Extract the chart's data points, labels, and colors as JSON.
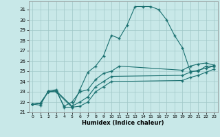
{
  "bg_color": "#c8e8e8",
  "grid_color": "#a0c8c8",
  "line_color": "#1a7070",
  "xlabel": "Humidex (Indice chaleur)",
  "xlim": [
    -0.5,
    23.5
  ],
  "ylim": [
    21,
    31.8
  ],
  "yticks": [
    21,
    22,
    23,
    24,
    25,
    26,
    27,
    28,
    29,
    30,
    31
  ],
  "xticks": [
    0,
    1,
    2,
    3,
    4,
    5,
    6,
    7,
    8,
    9,
    10,
    11,
    12,
    13,
    14,
    15,
    16,
    17,
    18,
    19,
    20,
    21,
    22,
    23
  ],
  "line1_x": [
    0,
    1,
    2,
    3,
    4,
    5,
    6,
    7,
    8,
    9,
    10,
    11,
    12,
    13,
    14,
    15,
    16,
    17,
    18,
    19,
    20,
    21,
    22,
    23
  ],
  "line1_y": [
    21.8,
    21.7,
    23.1,
    23.2,
    21.5,
    21.5,
    23.2,
    24.9,
    25.5,
    26.5,
    28.5,
    28.2,
    29.5,
    31.3,
    31.3,
    31.3,
    31.0,
    30.0,
    28.5,
    27.3,
    25.0,
    25.0,
    25.5,
    25.5
  ],
  "line2_x": [
    0,
    1,
    2,
    3,
    4,
    5,
    6,
    7,
    8,
    9,
    10,
    11,
    19,
    20,
    21,
    22,
    23
  ],
  "line2_y": [
    21.8,
    21.9,
    23.0,
    23.1,
    21.6,
    22.0,
    23.0,
    23.2,
    24.2,
    24.8,
    25.0,
    25.5,
    25.1,
    25.5,
    25.7,
    25.8,
    25.6
  ],
  "line3_x": [
    0,
    1,
    2,
    3,
    5,
    6,
    7,
    8,
    9,
    10,
    19,
    20,
    21,
    22,
    23
  ],
  "line3_y": [
    21.8,
    21.9,
    23.0,
    23.1,
    21.6,
    22.0,
    22.5,
    23.5,
    24.0,
    24.5,
    24.6,
    24.9,
    25.1,
    25.3,
    25.5
  ],
  "line4_x": [
    0,
    1,
    2,
    3,
    5,
    6,
    7,
    8,
    9,
    10,
    19,
    20,
    21,
    22,
    23
  ],
  "line4_y": [
    21.8,
    21.9,
    23.0,
    23.0,
    21.5,
    21.6,
    22.0,
    23.0,
    23.5,
    24.0,
    24.1,
    24.4,
    24.6,
    24.9,
    25.2
  ]
}
